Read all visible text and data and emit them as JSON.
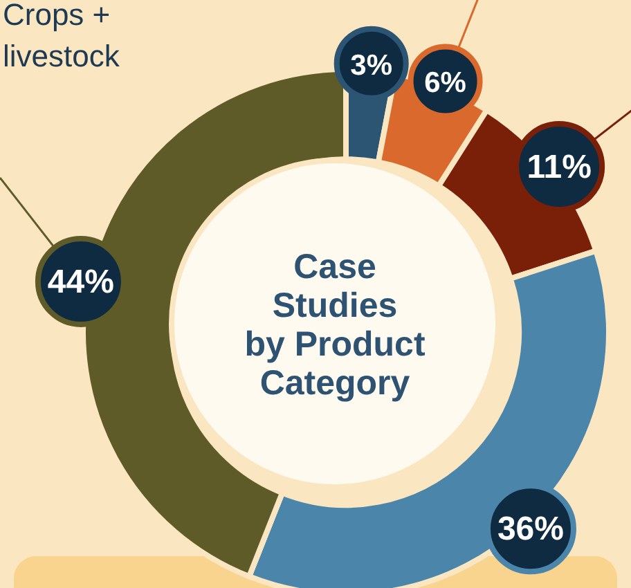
{
  "chart_data": {
    "type": "donut",
    "title": "Case Studies by Product Category",
    "categories": [
      null,
      null,
      null,
      null,
      "Crops + livestock"
    ],
    "values": [
      3,
      6,
      11,
      36,
      44
    ],
    "colors": [
      "#2b5573",
      "#d9692c",
      "#7a2009",
      "#4b86aa",
      "#5f5b28"
    ],
    "value_labels": [
      "3%",
      "6%",
      "11%",
      "36%",
      "44%"
    ]
  }
}
